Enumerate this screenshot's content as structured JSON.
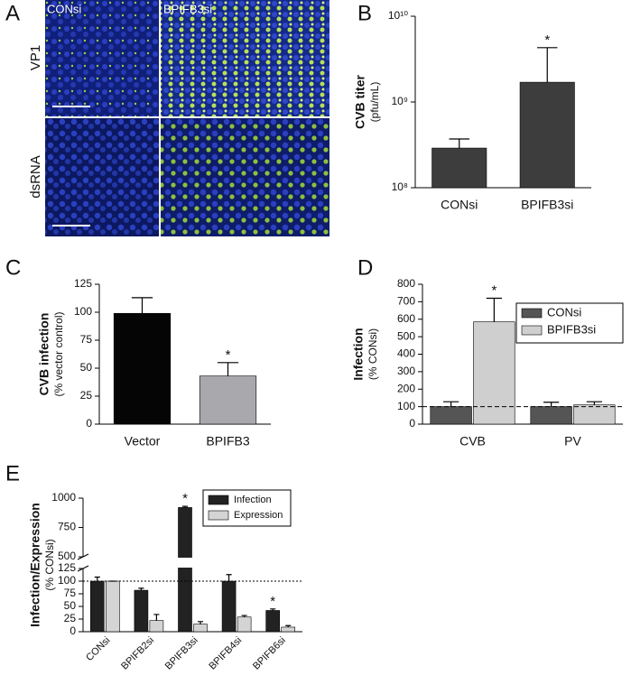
{
  "panel_a": {
    "panel": "A",
    "columns": [
      "CONsi",
      "BPIFB3si"
    ],
    "rows": [
      "VP1",
      "dsRNA"
    ]
  },
  "chart_data": [
    {
      "type": "bar",
      "panel": "B",
      "ylabel": [
        "CVB titer",
        "(pfu/mL)"
      ],
      "categories": [
        "CONsi",
        "BPIFB3si"
      ],
      "values": [
        290000000,
        1700000000
      ],
      "errors": [
        80000000,
        2600000000
      ],
      "color": "#3d3d3d",
      "log_scale": true,
      "ylim": [
        100000000,
        10000000000
      ],
      "yticks": [
        {
          "value": 100000000,
          "label": "10⁸"
        },
        {
          "value": 1000000000,
          "label": "10⁹"
        },
        {
          "value": 10000000000,
          "label": "10¹⁰"
        }
      ],
      "annotations": [
        {
          "text": "*",
          "x": "BPIFB3si"
        }
      ]
    },
    {
      "type": "bar",
      "panel": "C",
      "ylabel": [
        "CVB infection",
        "(% vector control)"
      ],
      "categories": [
        "Vector",
        "BPIFB3"
      ],
      "values": [
        99,
        43
      ],
      "errors": [
        14,
        12
      ],
      "colors": [
        "#050505",
        "#a9a9ad"
      ],
      "ylim": [
        0,
        125
      ],
      "yticks": [
        0,
        25,
        50,
        75,
        100,
        125
      ],
      "annotations": [
        {
          "text": "*",
          "x": "BPIFB3"
        }
      ]
    },
    {
      "type": "bar",
      "panel": "D",
      "ylabel": [
        "Infection",
        "(% CONsi)"
      ],
      "categories": [
        "CVB",
        "PV"
      ],
      "series": [
        {
          "name": "CONsi",
          "color": "#555555",
          "values": [
            100,
            100
          ],
          "errors": [
            28,
            25
          ]
        },
        {
          "name": "BPIFB3si",
          "color": "#cfcfcf",
          "values": [
            585,
            110
          ],
          "errors": [
            135,
            18
          ]
        }
      ],
      "ylim": [
        0,
        800
      ],
      "yticks": [
        0,
        100,
        200,
        300,
        400,
        500,
        600,
        700,
        800
      ],
      "reference_line": 100,
      "legend": "upper right",
      "annotations": [
        {
          "text": "*",
          "x": "CVB",
          "series": "BPIFB3si"
        }
      ]
    },
    {
      "type": "bar",
      "panel": "E",
      "ylabel": [
        "Infection/Expression",
        "(% CONsi)"
      ],
      "categories": [
        "CONsi",
        "BPIFB2si",
        "BPIFB3si",
        "BPIFB4si",
        "BPIFB6si"
      ],
      "series": [
        {
          "name": "Infection",
          "color": "#222222",
          "values": [
            100,
            82,
            920,
            100,
            42
          ],
          "errors": [
            8,
            4,
            10,
            13,
            3
          ]
        },
        {
          "name": "Expression",
          "color": "#d4d4d4",
          "values": [
            100,
            22,
            15,
            29,
            9
          ],
          "errors": [
            0,
            12,
            5,
            3,
            3
          ]
        }
      ],
      "ylim": [
        0,
        1000
      ],
      "axis_break": [
        125,
        500
      ],
      "yticks": [
        0,
        25,
        50,
        75,
        100,
        125,
        500,
        750,
        1000
      ],
      "reference_line": 100,
      "legend": "upper right",
      "xtick_rotation": -45,
      "annotations": [
        {
          "text": "*",
          "x": "BPIFB3si",
          "series": "Infection"
        },
        {
          "text": "*",
          "x": "BPIFB6si",
          "series": "Infection"
        }
      ]
    }
  ]
}
